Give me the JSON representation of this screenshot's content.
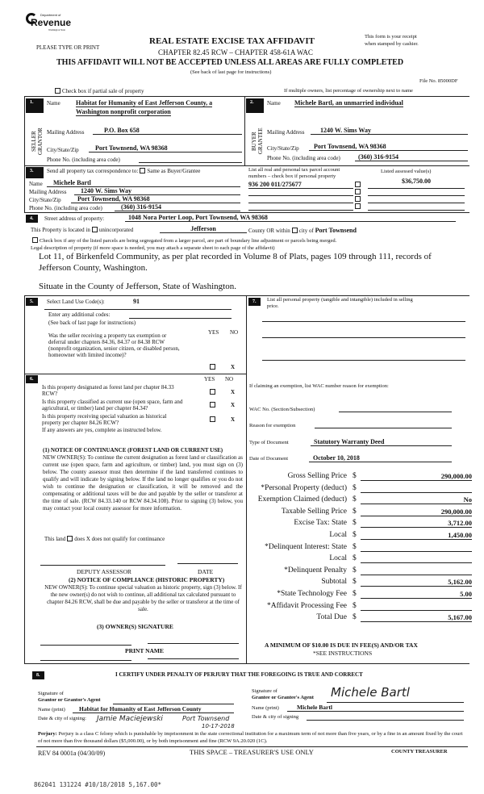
{
  "header": {
    "logo_top": "Department of",
    "logo_main": "Revenue",
    "logo_sub": "Washington State",
    "please": "PLEASE TYPE OR PRINT",
    "title": "REAL ESTATE EXCISE TAX AFFIDAVIT",
    "subtitle": "CHAPTER 82.45 RCW – CHAPTER 458-61A WAC",
    "warning": "THIS AFFIDAVIT WILL NOT BE ACCEPTED UNLESS ALL AREAS ARE FULLY COMPLETED",
    "see_back": "(See back of last page for instructions)",
    "receipt": "This form is your receipt",
    "receipt2": "when stamped by cashier.",
    "file_no": "File No. 85000DF",
    "partial_sale": "Check box if partial sale of property",
    "multiple_owners": "If multiple owners, list percentage of ownership next to name"
  },
  "seller": {
    "num": "1.",
    "side": "SELLER GRANTOR",
    "name_label": "Name",
    "name1": "Habitat for Humanity of East Jefferson County, a",
    "name2": "Washington nonprofit corporation",
    "mail_label": "Mailing Address",
    "mail": "P.O. Box 658",
    "city_label": "City/State/Zip",
    "city": "Port Townsend, WA 98368",
    "phone_label": "Phone No. (including area code)",
    "phone": ""
  },
  "buyer": {
    "num": "2.",
    "side": "BUYER GRANTEE",
    "name_label": "Name",
    "name": "Michele Bartl, an unmarried individual",
    "mail_label": "Mailing Address",
    "mail": "1240 W. Sims Way",
    "city_label": "City/State/Zip",
    "city": "Port Townsend, WA 98368",
    "phone_label": "Phone No. (including area code)",
    "phone": "(360) 316-9154"
  },
  "correspondence": {
    "num": "3.",
    "label": "Send all property tax correspondence to:",
    "same": "Same as Buyer/Grantee",
    "name_label": "Name",
    "name": "Michele  Bartl",
    "mail_label": "Mailing Address",
    "mail": "1240 W. Sims Way",
    "city_label": "City/State/Zip",
    "city": "Port Townsend, WA 98368",
    "phone_label": "Phone No. (including area code)",
    "phone": "(360) 316-9154"
  },
  "parcels": {
    "label1": "List all real and personal tax parcel account",
    "label2": "numbers – check box if personal property",
    "assessed_label": "Listed assessed value(s)",
    "parcel": "936 200 011/275677",
    "assessed": "$36,750.00"
  },
  "property": {
    "num": "4.",
    "street_label": "Street address of property:",
    "street": "1048 Nora Porter Loop, Port Townsend, WA  98368",
    "located": "This Property is located in",
    "unincorporated": "unincorporated",
    "county": "Jefferson",
    "county_or": "County OR  within",
    "city_of": "city of",
    "city": "Port Townsend",
    "segregated": "Check box if any of the listed parcels are being segregated from a larger parcel, are part of boundary line adjustment or parcels being merged.",
    "legal_label": "Legal description of property (if more space is needed, you may attach a separate sheet to each page of the affidavit)",
    "legal1": "Lot 11, of Birkenfeld Community, as per plat recorded in Volume 8 of Plats, pages 109 through 111, records of",
    "legal2": "Jefferson County, Washington.",
    "legal3": "Situate in the County of Jefferson, State of Washington."
  },
  "section5": {
    "num": "5.",
    "label": "Select Land Use Code(s):",
    "code": "91",
    "additional": "Enter any additional codes:",
    "see_back": "(See back of last page for instructions)",
    "yes": "YES",
    "no": "NO",
    "q1a": "Was the seller receiving a property tax exemption or",
    "q1b": "deferral under chapters 84.36, 84.37 or 84.38 RCW",
    "q1c": "(nonprofit organization, senior citizen, or disabled person,",
    "q1d": "homeowner with limited income)?",
    "q1_answer": "X"
  },
  "section7": {
    "num": "7.",
    "label1": "List all personal property (tangible and intangible) included in selling",
    "label2": "price."
  },
  "section6": {
    "num": "6.",
    "yes": "YES",
    "no": "NO",
    "q1a": "Is this property designated as forest land per chapter 84.33",
    "q1b": "RCW?",
    "q2a": "Is this property classified as current use (open space, farm and",
    "q2b": "agricultural, or timber) land per chapter 84.34?",
    "q3a": "Is this property receiving special valuation as historical",
    "q3b": "property per chapter 84.26 RCW?",
    "q_answer": "X",
    "if_yes": "If any answers are yes, complete as instructed below.",
    "notice1_title": "(1) NOTICE OF CONTINUANCE (FOREST LAND OR CURRENT USE)",
    "notice1": "NEW OWNER(S): To continue the current designation as forest land or classification as current use (open space, farm and agriculture, or timber) land, you must sign on (3) below. The county assessor must then determine if the land transferred continues to qualify and will indicate by signing below. If the land no longer qualifies or you do not wish to continue the designation or classification, it will be removed and the compensating or additional taxes will be due and payable by the seller or transferor at the time of sale. (RCW 84.33.140 or RCW 84.34.108). Prior to signing (3) below, you may contact your local county assessor for more information.",
    "land_a": "This land",
    "land_does": "does",
    "land_x": "X",
    "land_b": "does not  qualify for continuance",
    "deputy": "DEPUTY ASSESSOR",
    "date": "DATE",
    "notice2_title": "(2) NOTICE OF COMPLIANCE (HISTORIC PROPERTY)",
    "notice2": "NEW OWNER(S): To continue special valuation as historic property, sign (3) below. If the new owner(s) do not wish to continue, all additional tax calculated pursuant to chapter 84.26 RCW, shall be due and payable by the seller or transferor at the time of sale.",
    "owner_sig": "(3)  OWNER(S) SIGNATURE",
    "print_name": "PRINT NAME"
  },
  "exemption": {
    "label": "If claiming an exemption, list WAC number reason for exemption:",
    "wac_label": "WAC No. (Section/Subsection)",
    "wac": "",
    "reason_label": "Reason for exemption",
    "reason": "",
    "type_label": "Type of Document",
    "type": "Statutory Warranty Deed",
    "date_label": "Date of Document",
    "date": "October 10, 2018"
  },
  "financials": [
    {
      "label": "Gross Selling Price",
      "value": "290,000.00"
    },
    {
      "label": "*Personal Property (deduct)",
      "value": ""
    },
    {
      "label": "Exemption Claimed (deduct)",
      "value": "No"
    },
    {
      "label": "Taxable Selling Price",
      "value": "290,000.00"
    },
    {
      "label": "Excise Tax:  State",
      "value": "3,712.00"
    },
    {
      "label": "Local",
      "value": "1,450.00"
    },
    {
      "label": "*Delinquent Interest:  State",
      "value": ""
    },
    {
      "label": "Local",
      "value": ""
    },
    {
      "label": "*Delinquent Penalty",
      "value": ""
    },
    {
      "label": "Subtotal",
      "value": "5,162.00"
    },
    {
      "label": "*State Technology Fee",
      "value": "5.00"
    },
    {
      "label": "*Affidavit Processing Fee",
      "value": ""
    },
    {
      "label": "Total Due",
      "value": "5,167.00"
    }
  ],
  "currency": "$",
  "minimum": "A MINIMUM OF $10.00 IS DUE IN FEE(S) AND/OR TAX",
  "see_instructions": "*SEE INSTRUCTIONS",
  "section8": {
    "num": "8.",
    "certify": "I CERTIFY UNDER PENALTY OF PERJURY THAT THE FOREGOING IS TRUE AND CORRECT",
    "grantor_sig1": "Signature of",
    "grantor_sig2": "Grantor or Grantor's Agent",
    "grantor_name_label": "Name (print)",
    "grantor_name": "Habitat for Humanity of East Jefferson County",
    "grantor_date_label": "Date & city of signing:",
    "grantor_signature": "Jamie Maciejewski",
    "grantor_city": "Port Townsend",
    "grantor_date": "10-17-2018",
    "grantee_sig1": "Signature of",
    "grantee_sig2": "Grantee or Grantee's Agent",
    "grantee_signature": "Michele Bartl",
    "grantee_name_label": "Name (print)",
    "grantee_name": "Michele  Bartl",
    "grantee_date_label": "Date & city of signing",
    "perjury_label": "Perjury:",
    "perjury": "Perjury is a class C felony which is punishable by imprisonment in the state correctional institution for a maximum term of not more than five years, or by a fine in an amount fixed by the court of not more than five thousand dollars ($5,000.00), or by both imprisonment and fine (RCW 9A.20.020 (1C).",
    "rev": "REV 84 0001a (04/30/09)",
    "treasurer_space": "THIS SPACE – TREASURER'S USE ONLY",
    "county_treasurer": "COUNTY TREASURER"
  },
  "stamp": "862041 131224 #10/18/2018 5,167.00*"
}
